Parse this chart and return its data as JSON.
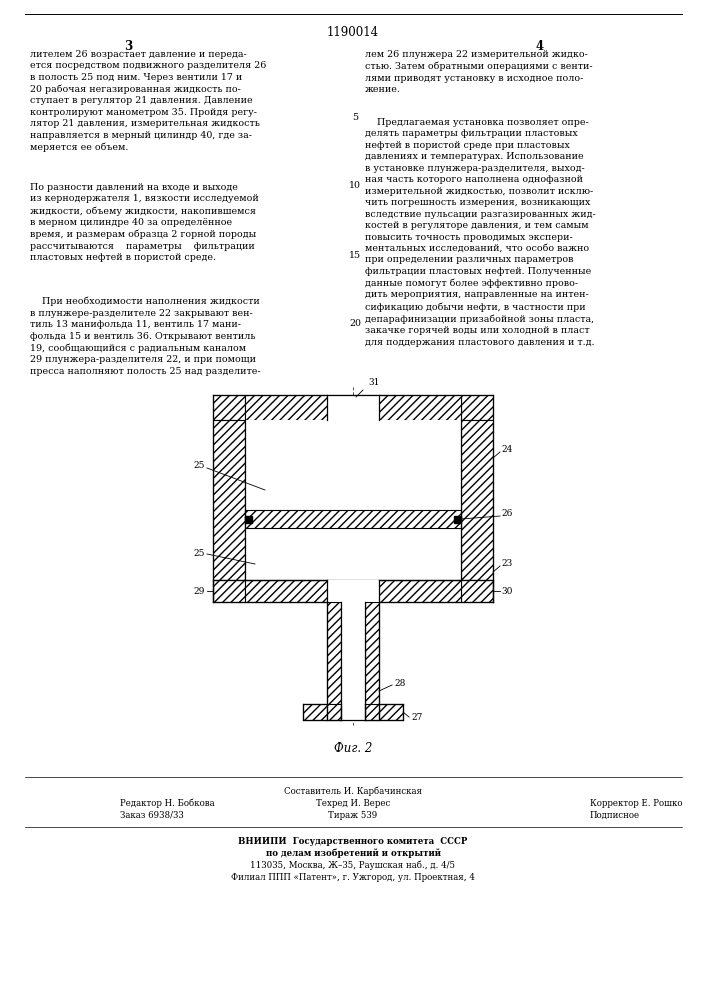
{
  "title_number": "1190014",
  "col_left": "3",
  "col_right": "4",
  "fig_label": "Фиг. 2",
  "text_left_p1": "лителем 26 возрастает давление и переда-\nется посредством подвижного разделителя 26\nв полость 25 под ним. Через вентили 17 и\n20 рабочая негазированная жидкость по-\nступает в регулятор 21 давления. Давление\nконтролируют манометром 35. Пройдя регу-\nлятор 21 давления, измерительная жидкость\nнаправляется в мерный цилиндр 40, где за-\nмеряется ее объем.",
  "text_left_p2": "По разности давлений на входе и выходе\nиз кернодержателя 1, вязкости исследуемой\nжидкости, объему жидкости, накопившемся\nв мерном цилиндре 40 за определённое\nвремя, и размерам образца 2 горной породы\nрассчитываются    параметры    фильтрации\nпластовых нефтей в пористой среде.",
  "text_left_p3": "    При необходимости наполнения жидкости\nв плунжере-разделителе 22 закрывают вен-\nтиль 13 манифольда 11, вентиль 17 мани-\nфольда 15 и вентиль 36. Открывают вентиль\n19, сообщающийся с радиальным каналом\n29 плунжера-разделителя 22, и при помощи\nпресса наполняют полость 25 над разделите-",
  "text_right_p1": "лем 26 плунжера 22 измерительной жидко-\nстью. Затем обратными операциями с венти-\nлями приводят установку в исходное поло-\nжение.",
  "text_right_p2": "    Предлагаемая установка позволяет опре-\nделять параметры фильтрации пластовых\nнефтей в пористой среде при пластовых\nдавлениях и температурах. Использование\nв установке плунжера-разделителя, выход-\nная часть которого наполнена однофазной\nизмерительной жидкостью, позволит исклю-\nчить погрешность измерения, возникающих\nвследствие пульсации разгазированных жид-\nкостей в регуляторе давления, и тем самым\nповысить точность проводимых экспери-\nментальных исследований, что особо важно\nпри определении различных параметров\nфильтрации пластовых нефтей. Полученные\nданные помогут более эффективно прово-\nдить мероприятия, направленные на интен-\nсификацию добычи нефти, в частности при\nдепарафинизации призабойной зоны пласта,\nзакачке горячей воды или холодной в пласт\nдля поддержания пластового давления и т.д.",
  "line_nums": [
    [
      5,
      118
    ],
    [
      10,
      186
    ],
    [
      15,
      255
    ],
    [
      20,
      323
    ]
  ],
  "footer_sestavitel": "Составитель И. Карбачинская",
  "footer_row2_left": "Редактор Н. Бобкова",
  "footer_row2_mid": "Техред И. Верес",
  "footer_row2_right": "Корректор Е. Рошко",
  "footer_row3_left": "Заказ 6938/33",
  "footer_row3_mid": "Тираж 539",
  "footer_row3_right": "Подписное",
  "footer_vniipи": "ВНИИПИ  Государственного комитета  СССР",
  "footer_po_delam": "по делам изобретений и открытий",
  "footer_addr": "113035, Москва, Ж–35, Раушская наб., д. 4/5",
  "footer_filial": "Филиал ППП «Патент», г. Ужгород, ул. Проектная, 4",
  "bg_color": "#ffffff"
}
